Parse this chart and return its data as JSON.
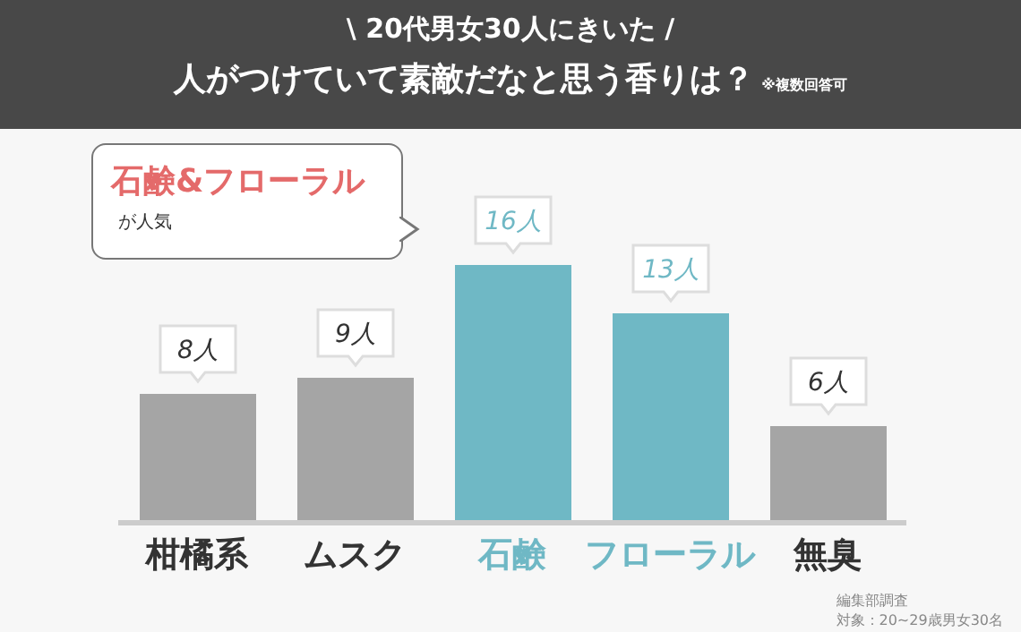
{
  "chart_data": {
    "type": "bar",
    "title": "\\ 20代男女30人にきいた /",
    "subtitle": "人がつけていて素敵だなと思う香りは？",
    "categories": [
      "柑橘系",
      "ムスク",
      "石鹸",
      "フローラル",
      "無臭"
    ],
    "values": [
      8,
      9,
      16,
      13,
      6
    ],
    "colors": [
      "#a5a5a5",
      "#a5a5a5",
      "#6fb8c5",
      "#6fb8c5",
      "#a5a5a5"
    ],
    "value_labels": [
      "8人",
      "9人",
      "16人",
      "13人",
      "6人"
    ],
    "annotations": [
      "※複数回答可",
      "石鹸&フローラル",
      "が人気",
      "編集部調査",
      "対象：20~29歳男女30名"
    ]
  }
}
